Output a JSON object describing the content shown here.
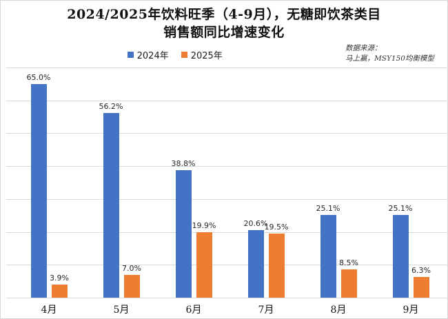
{
  "title": {
    "line1": "2024/2025年饮料旺季（4-9月），无糖即饮茶类目",
    "line2": "销售额同比增速变化"
  },
  "legend": [
    {
      "label": "2024年",
      "color": "#4472C4"
    },
    {
      "label": "2025年",
      "color": "#ED7D31"
    }
  ],
  "source": {
    "line1": "数据来源：",
    "line2": "马上赢，MSY150均衡模型"
  },
  "colors": {
    "series_2024": "#4472C4",
    "series_2025": "#ED7D31",
    "gridline": "#d9d9d9",
    "background": "#ffffff"
  },
  "chart_data": {
    "type": "bar",
    "title": "2024/2025年饮料旺季（4-9月），无糖即饮茶类目销售额同比增速变化",
    "categories": [
      "4月",
      "5月",
      "6月",
      "7月",
      "8月",
      "9月"
    ],
    "series": [
      {
        "name": "2024年",
        "color": "#4472C4",
        "values": [
          65.0,
          56.2,
          38.8,
          20.6,
          25.1,
          25.1
        ],
        "labels": [
          "65.0%",
          "56.2%",
          "38.8%",
          "20.6%",
          "25.1%",
          "25.1%"
        ]
      },
      {
        "name": "2025年",
        "color": "#ED7D31",
        "values": [
          3.9,
          7.0,
          19.9,
          19.5,
          8.5,
          6.3
        ],
        "labels": [
          "3.9%",
          "7.0%",
          "19.9%",
          "19.5%",
          "8.5%",
          "6.3%"
        ]
      }
    ],
    "xlabel": "",
    "ylabel": "",
    "ylim": [
      0,
      70
    ],
    "grid": true,
    "gridline_step": 10,
    "y_axis_labels_visible": false,
    "legend_position": "top-center",
    "value_labels_visible": true
  }
}
